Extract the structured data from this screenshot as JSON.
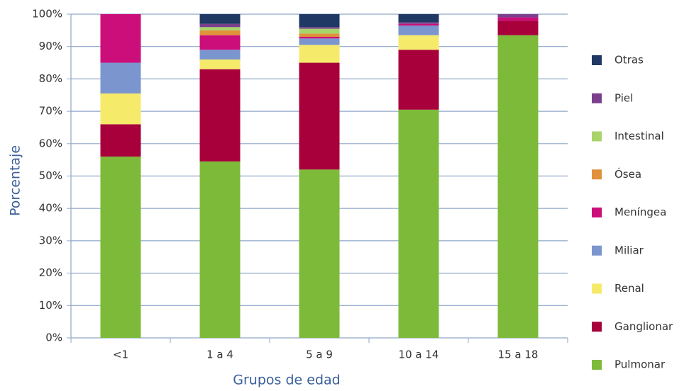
{
  "chart_data": {
    "type": "stacked_bar",
    "x_label": "Grupos de edad",
    "y_label": "Porcentaje",
    "categories": [
      "<1",
      "1 a 4",
      "5 a 9",
      "10 a 14",
      "15 a 18"
    ],
    "series": [
      {
        "name": "Pulmonar",
        "color": "#7dba3a",
        "values": [
          56,
          54.5,
          52,
          70.5,
          93.5
        ]
      },
      {
        "name": "Ganglionar",
        "color": "#a8003b",
        "values": [
          10,
          28.5,
          33,
          18.5,
          4.5
        ]
      },
      {
        "name": "Renal",
        "color": "#f6ea6b",
        "values": [
          9.5,
          3,
          5.5,
          4.5,
          0
        ]
      },
      {
        "name": "Miliar",
        "color": "#7b96cf",
        "values": [
          9.5,
          3,
          2,
          3,
          0
        ]
      },
      {
        "name": "Meníngea",
        "color": "#cc0e7a",
        "values": [
          15,
          4.5,
          0.5,
          0.5,
          1
        ]
      },
      {
        "name": "Ósea",
        "color": "#e0913a",
        "values": [
          0,
          1.5,
          1,
          0,
          0
        ]
      },
      {
        "name": "Intestinal",
        "color": "#a9d36b",
        "values": [
          0,
          1,
          1.5,
          0,
          0
        ]
      },
      {
        "name": "Piel",
        "color": "#7b3f8c",
        "values": [
          0,
          1,
          0.5,
          0.5,
          1
        ]
      },
      {
        "name": "Otras",
        "color": "#1f3864",
        "values": [
          0,
          3,
          4,
          2.5,
          0
        ]
      }
    ],
    "ylim": [
      0,
      100
    ],
    "yticks": [
      {
        "value": 0,
        "label": "0%"
      },
      {
        "value": 10,
        "label": "10%"
      },
      {
        "value": 20,
        "label": "20%"
      },
      {
        "value": 30,
        "label": "30%"
      },
      {
        "value": 40,
        "label": "40%"
      },
      {
        "value": 50,
        "label": "50%"
      },
      {
        "value": 60,
        "label": "60%"
      },
      {
        "value": 70,
        "label": "70%"
      },
      {
        "value": 80,
        "label": "80%"
      },
      {
        "value": 90,
        "label": "90%"
      },
      {
        "value": 100,
        "label": "100%"
      }
    ],
    "grid": true,
    "legend": "right"
  }
}
